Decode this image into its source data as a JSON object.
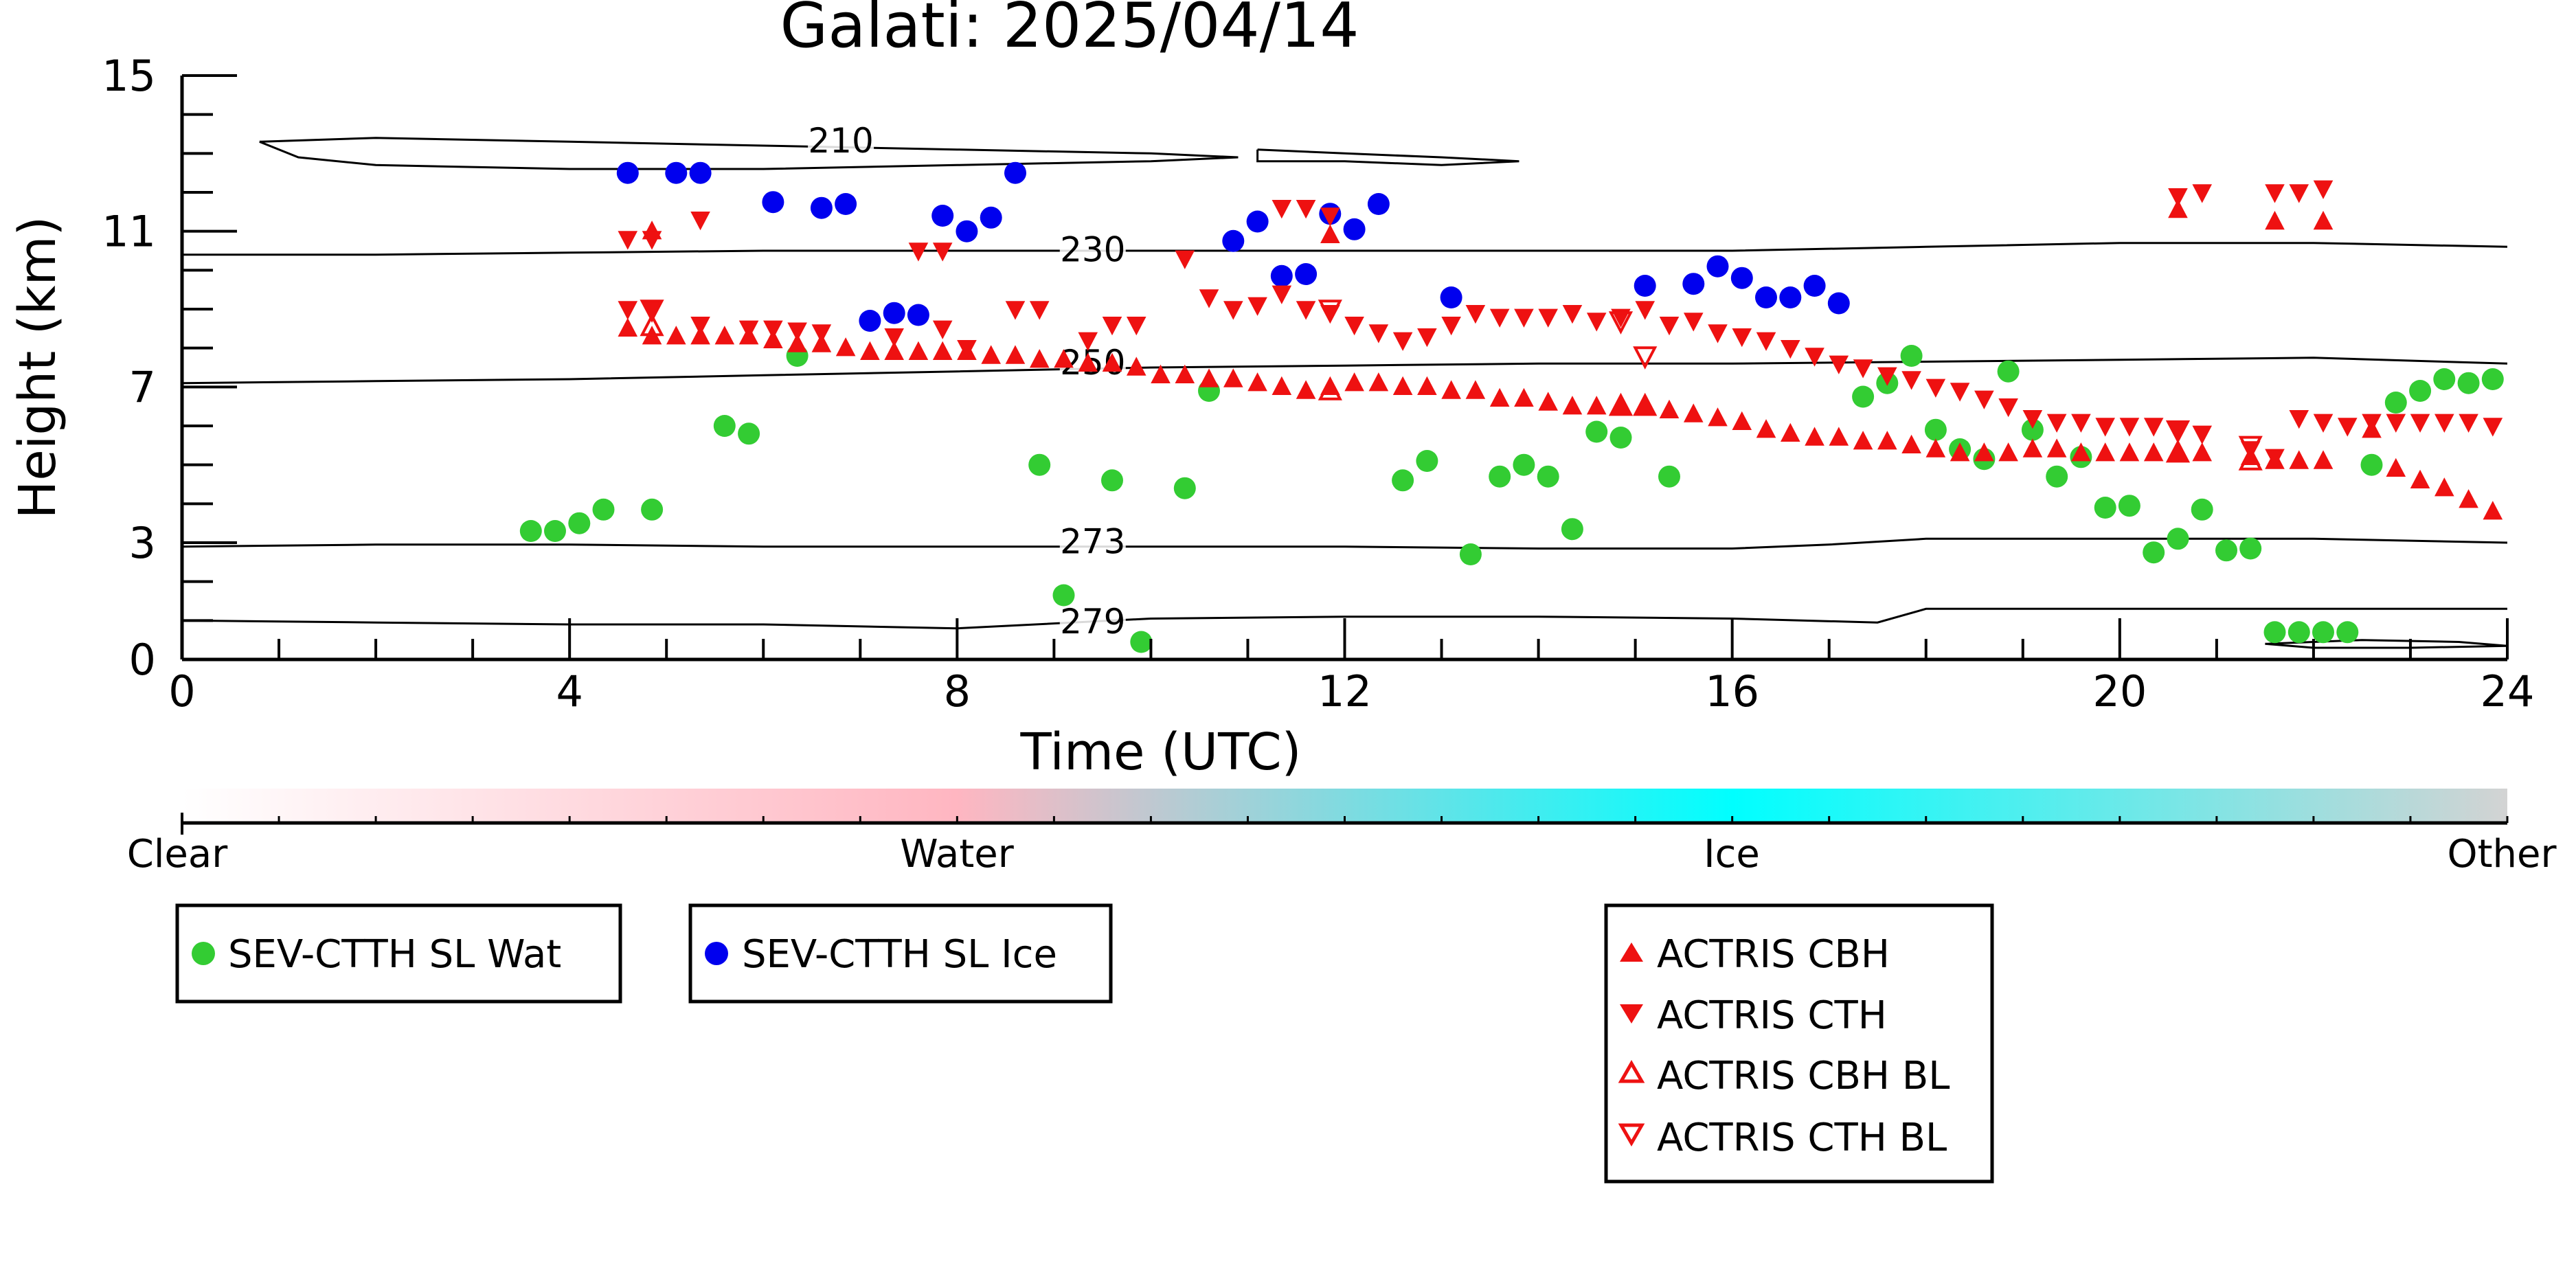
{
  "chart_data": {
    "type": "scatter",
    "title": "Galati: 2025/04/14",
    "xlabel": "Time (UTC)",
    "ylabel": "Height (km)",
    "xlim": [
      0,
      24
    ],
    "ylim": [
      0,
      15
    ],
    "xticks": [
      0,
      4,
      8,
      12,
      16,
      20,
      24
    ],
    "yticks": [
      0,
      3,
      7,
      11,
      15
    ],
    "colorbar": {
      "labels": [
        "Clear",
        "Water",
        "Ice",
        "Other"
      ],
      "colors": [
        "#ffffff",
        "#ffb6c1",
        "#00ffff",
        "#d3d3d3"
      ]
    },
    "contours": [
      {
        "label": "210",
        "label_x": 6.8,
        "label_y": 13.2,
        "points": [
          [
            0.8,
            13.3
          ],
          [
            2,
            13.4
          ],
          [
            4,
            13.3
          ],
          [
            6,
            13.2
          ],
          [
            8,
            13.1
          ],
          [
            10,
            13.0
          ],
          [
            10.9,
            12.9
          ],
          [
            10,
            12.8
          ],
          [
            8,
            12.7
          ],
          [
            6,
            12.6
          ],
          [
            4,
            12.6
          ],
          [
            2,
            12.7
          ],
          [
            1.2,
            12.9
          ],
          [
            0.8,
            13.3
          ]
        ]
      },
      {
        "label": "",
        "label_x": null,
        "label_y": null,
        "points": [
          [
            11.1,
            13.1
          ],
          [
            12,
            13.0
          ],
          [
            13,
            12.9
          ],
          [
            13.8,
            12.8
          ],
          [
            13,
            12.7
          ],
          [
            12,
            12.8
          ],
          [
            11.1,
            12.8
          ],
          [
            11.1,
            13.1
          ]
        ]
      },
      {
        "label": "230",
        "label_x": 9.4,
        "label_y": 10.4,
        "points": [
          [
            0,
            10.4
          ],
          [
            2,
            10.4
          ],
          [
            4,
            10.45
          ],
          [
            6,
            10.5
          ],
          [
            8,
            10.5
          ],
          [
            10,
            10.5
          ],
          [
            12,
            10.5
          ],
          [
            14,
            10.5
          ],
          [
            16,
            10.5
          ],
          [
            18,
            10.6
          ],
          [
            20,
            10.7
          ],
          [
            22,
            10.7
          ],
          [
            24,
            10.6
          ]
        ]
      },
      {
        "label": "250",
        "label_x": 9.4,
        "label_y": 7.5,
        "points": [
          [
            0,
            7.1
          ],
          [
            2,
            7.15
          ],
          [
            4,
            7.2
          ],
          [
            6,
            7.3
          ],
          [
            8,
            7.4
          ],
          [
            10,
            7.5
          ],
          [
            12,
            7.55
          ],
          [
            14,
            7.6
          ],
          [
            16,
            7.6
          ],
          [
            18,
            7.65
          ],
          [
            20,
            7.7
          ],
          [
            22,
            7.75
          ],
          [
            24,
            7.6
          ]
        ]
      },
      {
        "label": "273",
        "label_x": 9.4,
        "label_y": 2.9,
        "points": [
          [
            0,
            2.9
          ],
          [
            2,
            2.95
          ],
          [
            4,
            2.95
          ],
          [
            6,
            2.9
          ],
          [
            8,
            2.9
          ],
          [
            10,
            2.9
          ],
          [
            12,
            2.9
          ],
          [
            14,
            2.85
          ],
          [
            16,
            2.85
          ],
          [
            17,
            2.95
          ],
          [
            18,
            3.1
          ],
          [
            20,
            3.1
          ],
          [
            22,
            3.1
          ],
          [
            24,
            3.0
          ]
        ]
      },
      {
        "label": "279",
        "label_x": 9.4,
        "label_y": 0.85,
        "points": [
          [
            0,
            1.0
          ],
          [
            2,
            0.95
          ],
          [
            4,
            0.9
          ],
          [
            6,
            0.9
          ],
          [
            8,
            0.8
          ],
          [
            10,
            1.05
          ],
          [
            12,
            1.1
          ],
          [
            14,
            1.1
          ],
          [
            16,
            1.05
          ],
          [
            17.5,
            0.95
          ],
          [
            18,
            1.3
          ],
          [
            20,
            1.3
          ],
          [
            22,
            1.3
          ],
          [
            24,
            1.3
          ]
        ]
      },
      {
        "label": "",
        "label_x": null,
        "label_y": null,
        "points": [
          [
            21.5,
            0.4
          ],
          [
            22.5,
            0.5
          ],
          [
            23.5,
            0.45
          ],
          [
            24,
            0.35
          ],
          [
            23,
            0.3
          ],
          [
            22,
            0.3
          ],
          [
            21.5,
            0.4
          ]
        ]
      }
    ],
    "series": [
      {
        "name": "SEV-CTTH SL Wat",
        "marker": "circle",
        "color": "#33cc33",
        "x": [
          3.6,
          3.85,
          4.1,
          4.35,
          4.85,
          5.6,
          5.85,
          6.35,
          8.85,
          9.1,
          9.6,
          9.9,
          10.35,
          10.6,
          12.6,
          12.85,
          13.3,
          13.6,
          13.85,
          14.1,
          14.35,
          14.6,
          14.85,
          15.35,
          17.35,
          17.6,
          17.85,
          18.1,
          18.35,
          18.6,
          18.85,
          19.1,
          19.35,
          19.6,
          19.85,
          20.1,
          20.35,
          20.6,
          20.85,
          21.1,
          21.35,
          21.6,
          21.85,
          22.1,
          22.35,
          22.6,
          22.85,
          23.1,
          23.35,
          23.6,
          23.85
        ],
        "y": [
          3.3,
          3.3,
          3.5,
          3.85,
          3.85,
          6.0,
          5.8,
          7.8,
          5.0,
          1.65,
          4.6,
          0.45,
          4.4,
          6.9,
          4.6,
          5.1,
          2.7,
          4.7,
          5.0,
          4.7,
          3.35,
          5.85,
          5.7,
          4.7,
          6.75,
          7.1,
          7.8,
          5.9,
          5.4,
          5.15,
          7.4,
          5.9,
          4.7,
          5.2,
          3.9,
          3.95,
          2.75,
          3.1,
          3.85,
          2.8,
          2.85,
          0.7,
          0.7,
          0.7,
          0.7,
          5.0,
          6.6,
          6.9,
          7.2,
          7.1,
          7.2
        ]
      },
      {
        "name": "SEV-CTTH SL Ice",
        "marker": "circle",
        "color": "#0000ee",
        "x": [
          4.6,
          5.1,
          5.35,
          6.1,
          6.6,
          6.85,
          7.1,
          7.35,
          7.6,
          7.85,
          8.1,
          8.35,
          8.6,
          10.85,
          11.1,
          11.35,
          11.6,
          11.85,
          12.1,
          12.35,
          13.1,
          15.1,
          15.6,
          15.85,
          16.1,
          16.35,
          16.6,
          16.85,
          17.1
        ],
        "y": [
          12.5,
          12.5,
          12.5,
          11.75,
          11.6,
          11.7,
          8.7,
          8.9,
          8.85,
          11.4,
          11.0,
          11.35,
          12.5,
          10.75,
          11.25,
          9.85,
          9.9,
          11.45,
          11.05,
          11.7,
          9.3,
          9.6,
          9.65,
          10.1,
          9.8,
          9.3,
          9.3,
          9.6,
          9.15
        ]
      },
      {
        "name": "ACTRIS CBH",
        "marker": "triangle-up",
        "color": "#ee1111",
        "x": [
          4.6,
          4.85,
          5.1,
          5.35,
          5.6,
          5.85,
          6.1,
          6.35,
          6.6,
          6.85,
          7.1,
          7.35,
          7.6,
          7.85,
          8.1,
          8.35,
          8.6,
          8.85,
          9.1,
          9.35,
          9.6,
          9.85,
          10.1,
          10.35,
          10.6,
          10.85,
          11.1,
          11.35,
          11.6,
          11.85,
          12.1,
          12.35,
          12.6,
          12.85,
          13.1,
          13.35,
          13.6,
          13.85,
          14.1,
          14.35,
          14.6,
          14.85,
          15.1,
          15.35,
          15.6,
          15.85,
          16.1,
          16.35,
          16.6,
          16.85,
          17.1,
          17.35,
          17.6,
          17.85,
          18.1,
          18.35,
          18.6,
          18.85,
          19.1,
          19.35,
          19.6,
          19.85,
          20.1,
          20.35,
          20.6,
          20.85,
          21.35,
          21.6,
          21.85,
          22.1,
          22.6,
          22.85,
          23.1,
          23.35,
          23.6,
          23.85,
          4.85,
          11.85,
          20.6,
          21.6,
          22.1
        ],
        "y": [
          8.5,
          8.3,
          8.3,
          8.3,
          8.3,
          8.3,
          8.2,
          8.1,
          8.1,
          8.0,
          7.9,
          7.9,
          7.9,
          7.9,
          7.9,
          7.8,
          7.8,
          7.7,
          7.7,
          7.6,
          7.6,
          7.5,
          7.3,
          7.3,
          7.2,
          7.2,
          7.1,
          7.0,
          6.9,
          7.0,
          7.1,
          7.1,
          7.0,
          7.0,
          6.9,
          6.9,
          6.7,
          6.7,
          6.6,
          6.5,
          6.5,
          6.5,
          6.5,
          6.4,
          6.3,
          6.2,
          6.1,
          5.9,
          5.8,
          5.7,
          5.7,
          5.6,
          5.6,
          5.5,
          5.4,
          5.3,
          5.3,
          5.3,
          5.4,
          5.4,
          5.3,
          5.3,
          5.3,
          5.3,
          5.3,
          5.3,
          5.2,
          5.1,
          5.1,
          5.1,
          5.9,
          4.9,
          4.6,
          4.4,
          4.1,
          3.8,
          11.0,
          10.9,
          11.55,
          11.25,
          11.25
        ]
      },
      {
        "name": "ACTRIS CTH",
        "marker": "triangle-down",
        "color": "#ee1111",
        "x": [
          4.6,
          4.85,
          5.35,
          5.85,
          6.1,
          6.35,
          6.6,
          7.35,
          7.85,
          8.1,
          8.6,
          8.85,
          9.35,
          9.6,
          9.85,
          10.35,
          10.6,
          10.85,
          11.1,
          11.35,
          11.6,
          11.85,
          12.1,
          12.35,
          12.6,
          12.85,
          13.1,
          13.35,
          13.6,
          13.85,
          14.1,
          14.35,
          14.6,
          14.85,
          15.1,
          15.35,
          15.6,
          15.85,
          16.1,
          16.35,
          16.6,
          16.85,
          17.1,
          17.35,
          17.6,
          17.85,
          18.1,
          18.35,
          18.6,
          18.85,
          19.1,
          19.35,
          19.6,
          19.85,
          20.1,
          20.35,
          20.6,
          20.85,
          21.35,
          21.6,
          21.85,
          22.1,
          22.35,
          22.6,
          22.85,
          23.1,
          23.35,
          23.6,
          23.85,
          4.6,
          4.85,
          5.35,
          7.6,
          7.85,
          11.35,
          11.6,
          11.85,
          20.6,
          20.85,
          21.6,
          21.85,
          22.1
        ],
        "y": [
          9.0,
          9.0,
          8.6,
          8.5,
          8.5,
          8.45,
          8.4,
          8.3,
          8.5,
          8.0,
          9.0,
          9.0,
          8.2,
          8.6,
          8.6,
          10.3,
          9.3,
          9.0,
          9.1,
          9.4,
          9.0,
          8.9,
          8.6,
          8.4,
          8.2,
          8.3,
          8.6,
          8.9,
          8.8,
          8.8,
          8.8,
          8.9,
          8.7,
          8.8,
          9.0,
          8.6,
          8.7,
          8.4,
          8.3,
          8.2,
          8.0,
          7.8,
          7.6,
          7.5,
          7.3,
          7.2,
          7.0,
          6.9,
          6.7,
          6.5,
          6.2,
          6.1,
          6.1,
          6.0,
          6.0,
          6.0,
          5.9,
          5.8,
          5.4,
          5.2,
          6.2,
          6.1,
          6.0,
          6.1,
          6.1,
          6.1,
          6.1,
          6.1,
          6.0,
          10.8,
          10.8,
          11.3,
          10.5,
          10.5,
          11.6,
          11.6,
          11.4,
          11.9,
          12.0,
          12.0,
          12.0,
          12.1
        ]
      },
      {
        "name": "ACTRIS CBH BL",
        "marker": "triangle-up-open",
        "color": "#ee1111",
        "x": [
          4.85,
          11.85,
          14.85,
          15.1,
          20.6,
          21.35
        ],
        "y": [
          8.55,
          6.9,
          6.5,
          6.5,
          5.3,
          5.1
        ]
      },
      {
        "name": "ACTRIS CTH BL",
        "marker": "triangle-down-open",
        "color": "#ee1111",
        "x": [
          4.85,
          11.85,
          14.85,
          15.1,
          20.6,
          21.35
        ],
        "y": [
          9.0,
          9.0,
          8.7,
          7.8,
          5.9,
          5.5
        ]
      }
    ]
  }
}
